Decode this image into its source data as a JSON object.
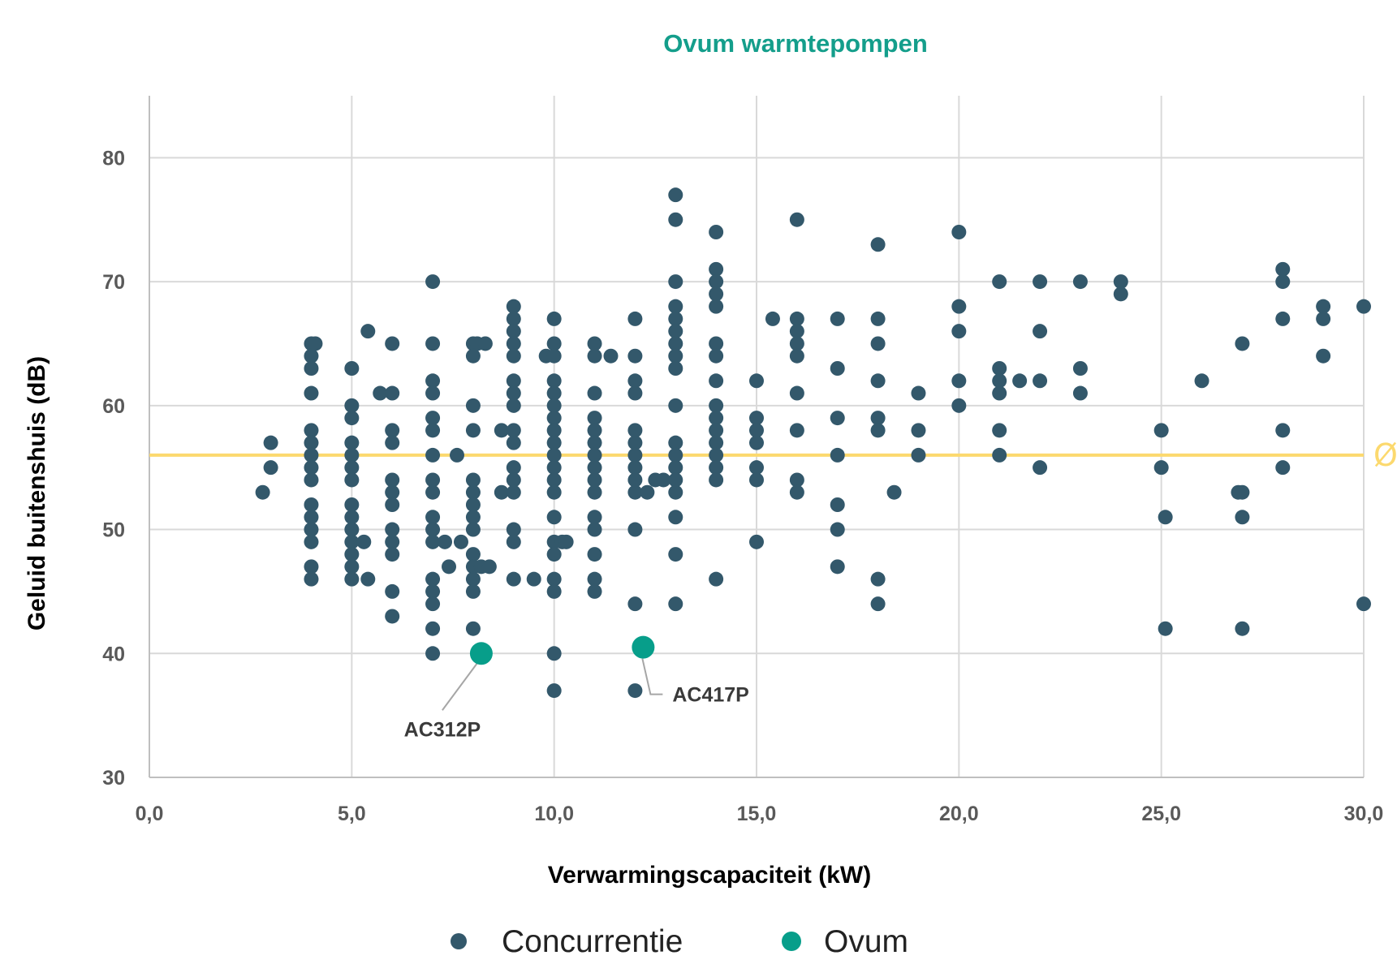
{
  "chart_data": {
    "type": "scatter",
    "title": "Ovum warmtepompen",
    "xlabel": "Verwarmingscapaciteit (kW)",
    "ylabel": "Geluid buitenshuis (dB)",
    "xlim": [
      0,
      30
    ],
    "ylim": [
      30,
      85
    ],
    "x_ticks": [
      0,
      5,
      10,
      15,
      20,
      25,
      30
    ],
    "x_tick_labels": [
      "0,0",
      "5,0",
      "10,0",
      "15,0",
      "20,0",
      "25,0",
      "30,0"
    ],
    "y_ticks": [
      30,
      40,
      50,
      60,
      70,
      80
    ],
    "y_tick_labels": [
      "30",
      "40",
      "50",
      "60",
      "70",
      "80"
    ],
    "grid": true,
    "legend_position": "bottom",
    "colors": {
      "competition": "#33586b",
      "ovum": "#079e8a",
      "average": "#fcd96e",
      "title": "#149e8b",
      "grid": "#d9d9d9"
    },
    "average_line": {
      "y": 56,
      "label": "Ø"
    },
    "series": [
      {
        "name": "Concurrentie",
        "points": [
          [
            2.8,
            53
          ],
          [
            3,
            57
          ],
          [
            3,
            55
          ],
          [
            4,
            65
          ],
          [
            4.1,
            65
          ],
          [
            4,
            64
          ],
          [
            4,
            63
          ],
          [
            4,
            61
          ],
          [
            4,
            58
          ],
          [
            4,
            57
          ],
          [
            4,
            56
          ],
          [
            4,
            55
          ],
          [
            4,
            54
          ],
          [
            4,
            52
          ],
          [
            4,
            51
          ],
          [
            4,
            50
          ],
          [
            4,
            49
          ],
          [
            4,
            47
          ],
          [
            4,
            46
          ],
          [
            5,
            63
          ],
          [
            5,
            60
          ],
          [
            5,
            59
          ],
          [
            5,
            57
          ],
          [
            5,
            56
          ],
          [
            5,
            55
          ],
          [
            5,
            54
          ],
          [
            5,
            52
          ],
          [
            5,
            51
          ],
          [
            5,
            50
          ],
          [
            5,
            49
          ],
          [
            5,
            48
          ],
          [
            5,
            47
          ],
          [
            5,
            46
          ],
          [
            5.3,
            49
          ],
          [
            5.4,
            46
          ],
          [
            5.4,
            66
          ],
          [
            5.7,
            61
          ],
          [
            6,
            65
          ],
          [
            6,
            61
          ],
          [
            6,
            58
          ],
          [
            6,
            57
          ],
          [
            6,
            54
          ],
          [
            6,
            53
          ],
          [
            6,
            52
          ],
          [
            6,
            50
          ],
          [
            6,
            49
          ],
          [
            6,
            48
          ],
          [
            6,
            45
          ],
          [
            6,
            43
          ],
          [
            7,
            70
          ],
          [
            7,
            65
          ],
          [
            7,
            62
          ],
          [
            7,
            61
          ],
          [
            7,
            59
          ],
          [
            7,
            58
          ],
          [
            7,
            56
          ],
          [
            7,
            54
          ],
          [
            7,
            53
          ],
          [
            7,
            51
          ],
          [
            7,
            50
          ],
          [
            7,
            49
          ],
          [
            7,
            46
          ],
          [
            7,
            45
          ],
          [
            7,
            44
          ],
          [
            7,
            42
          ],
          [
            7,
            40
          ],
          [
            7.3,
            49
          ],
          [
            7.4,
            47
          ],
          [
            7.6,
            56
          ],
          [
            7.7,
            49
          ],
          [
            8,
            65
          ],
          [
            8.1,
            65
          ],
          [
            8.3,
            65
          ],
          [
            8,
            64
          ],
          [
            8,
            60
          ],
          [
            8,
            58
          ],
          [
            8,
            54
          ],
          [
            8,
            53
          ],
          [
            8,
            52
          ],
          [
            8,
            51
          ],
          [
            8,
            50
          ],
          [
            8,
            48
          ],
          [
            8,
            47
          ],
          [
            8,
            46
          ],
          [
            8,
            45
          ],
          [
            8,
            42
          ],
          [
            8.2,
            47
          ],
          [
            8.4,
            47
          ],
          [
            8.7,
            58
          ],
          [
            8.7,
            53
          ],
          [
            9,
            68
          ],
          [
            9,
            67
          ],
          [
            9,
            66
          ],
          [
            9,
            65
          ],
          [
            9,
            64
          ],
          [
            9,
            62
          ],
          [
            9,
            61
          ],
          [
            9,
            60
          ],
          [
            9,
            58
          ],
          [
            9,
            57
          ],
          [
            9,
            55
          ],
          [
            9,
            54
          ],
          [
            9,
            53
          ],
          [
            9,
            50
          ],
          [
            9,
            49
          ],
          [
            9,
            46
          ],
          [
            9.5,
            46
          ],
          [
            9.8,
            64
          ],
          [
            10,
            67
          ],
          [
            10,
            65
          ],
          [
            10,
            64
          ],
          [
            10,
            62
          ],
          [
            10,
            61
          ],
          [
            10,
            60
          ],
          [
            10,
            59
          ],
          [
            10,
            58
          ],
          [
            10,
            57
          ],
          [
            10,
            56
          ],
          [
            10,
            55
          ],
          [
            10,
            54
          ],
          [
            10,
            53
          ],
          [
            10,
            51
          ],
          [
            10,
            49
          ],
          [
            10,
            48
          ],
          [
            10,
            46
          ],
          [
            10,
            45
          ],
          [
            10,
            40
          ],
          [
            10,
            37
          ],
          [
            10.2,
            49
          ],
          [
            10.3,
            49
          ],
          [
            11,
            65
          ],
          [
            11,
            64
          ],
          [
            11,
            61
          ],
          [
            11,
            59
          ],
          [
            11,
            58
          ],
          [
            11,
            57
          ],
          [
            11,
            56
          ],
          [
            11,
            55
          ],
          [
            11,
            54
          ],
          [
            11,
            53
          ],
          [
            11,
            51
          ],
          [
            11,
            50
          ],
          [
            11,
            48
          ],
          [
            11,
            46
          ],
          [
            11,
            45
          ],
          [
            11.4,
            64
          ],
          [
            12,
            67
          ],
          [
            12,
            64
          ],
          [
            12,
            62
          ],
          [
            12,
            61
          ],
          [
            12,
            58
          ],
          [
            12,
            57
          ],
          [
            12,
            56
          ],
          [
            12,
            55
          ],
          [
            12,
            54
          ],
          [
            12,
            53
          ],
          [
            12,
            50
          ],
          [
            12,
            44
          ],
          [
            12,
            37
          ],
          [
            12.3,
            53
          ],
          [
            12.5,
            54
          ],
          [
            12.7,
            54
          ],
          [
            13,
            77
          ],
          [
            13,
            75
          ],
          [
            13,
            70
          ],
          [
            13,
            68
          ],
          [
            13,
            67
          ],
          [
            13,
            66
          ],
          [
            13,
            65
          ],
          [
            13,
            64
          ],
          [
            13,
            63
          ],
          [
            13,
            60
          ],
          [
            13,
            57
          ],
          [
            13,
            56
          ],
          [
            13,
            55
          ],
          [
            13,
            54
          ],
          [
            13,
            53
          ],
          [
            13,
            51
          ],
          [
            13,
            48
          ],
          [
            13,
            44
          ],
          [
            14,
            74
          ],
          [
            14,
            71
          ],
          [
            14,
            70
          ],
          [
            14,
            69
          ],
          [
            14,
            68
          ],
          [
            14,
            65
          ],
          [
            14,
            64
          ],
          [
            14,
            62
          ],
          [
            14,
            60
          ],
          [
            14,
            59
          ],
          [
            14,
            58
          ],
          [
            14,
            57
          ],
          [
            14,
            56
          ],
          [
            14,
            55
          ],
          [
            14,
            54
          ],
          [
            14,
            46
          ],
          [
            15,
            62
          ],
          [
            15,
            59
          ],
          [
            15,
            58
          ],
          [
            15,
            57
          ],
          [
            15,
            55
          ],
          [
            15,
            54
          ],
          [
            15,
            49
          ],
          [
            15.4,
            67
          ],
          [
            16,
            75
          ],
          [
            16,
            67
          ],
          [
            16,
            66
          ],
          [
            16,
            65
          ],
          [
            16,
            64
          ],
          [
            16,
            61
          ],
          [
            16,
            58
          ],
          [
            16,
            54
          ],
          [
            16,
            53
          ],
          [
            17,
            67
          ],
          [
            17,
            63
          ],
          [
            17,
            59
          ],
          [
            17,
            56
          ],
          [
            17,
            52
          ],
          [
            17,
            50
          ],
          [
            17,
            47
          ],
          [
            18,
            73
          ],
          [
            18,
            67
          ],
          [
            18,
            65
          ],
          [
            18,
            62
          ],
          [
            18,
            59
          ],
          [
            18,
            58
          ],
          [
            18,
            46
          ],
          [
            18,
            44
          ],
          [
            18.4,
            53
          ],
          [
            19,
            61
          ],
          [
            19,
            58
          ],
          [
            19,
            56
          ],
          [
            20,
            74
          ],
          [
            20,
            68
          ],
          [
            20,
            66
          ],
          [
            20,
            62
          ],
          [
            20,
            60
          ],
          [
            21,
            70
          ],
          [
            21,
            63
          ],
          [
            21,
            62
          ],
          [
            21,
            61
          ],
          [
            21,
            58
          ],
          [
            21,
            56
          ],
          [
            21.5,
            62
          ],
          [
            22,
            70
          ],
          [
            22,
            66
          ],
          [
            22,
            62
          ],
          [
            22,
            55
          ],
          [
            23,
            70
          ],
          [
            23,
            63
          ],
          [
            23,
            61
          ],
          [
            24,
            70
          ],
          [
            24,
            69
          ],
          [
            25,
            58
          ],
          [
            25,
            55
          ],
          [
            25.1,
            51
          ],
          [
            25.1,
            42
          ],
          [
            26,
            62
          ],
          [
            27,
            65
          ],
          [
            26.9,
            53
          ],
          [
            27,
            53
          ],
          [
            27,
            51
          ],
          [
            27,
            42
          ],
          [
            28,
            71
          ],
          [
            28,
            70
          ],
          [
            28,
            67
          ],
          [
            28,
            58
          ],
          [
            28,
            55
          ],
          [
            29,
            68
          ],
          [
            29,
            67
          ],
          [
            29,
            64
          ],
          [
            30,
            68
          ],
          [
            30,
            44
          ]
        ]
      },
      {
        "name": "Ovum",
        "points": [
          [
            8.2,
            40
          ],
          [
            12.2,
            40.5
          ]
        ]
      }
    ],
    "annotations": [
      {
        "text": "AC312P",
        "x": 8.2,
        "y": 40
      },
      {
        "text": "AC417P",
        "x": 12.2,
        "y": 40.5
      }
    ]
  }
}
